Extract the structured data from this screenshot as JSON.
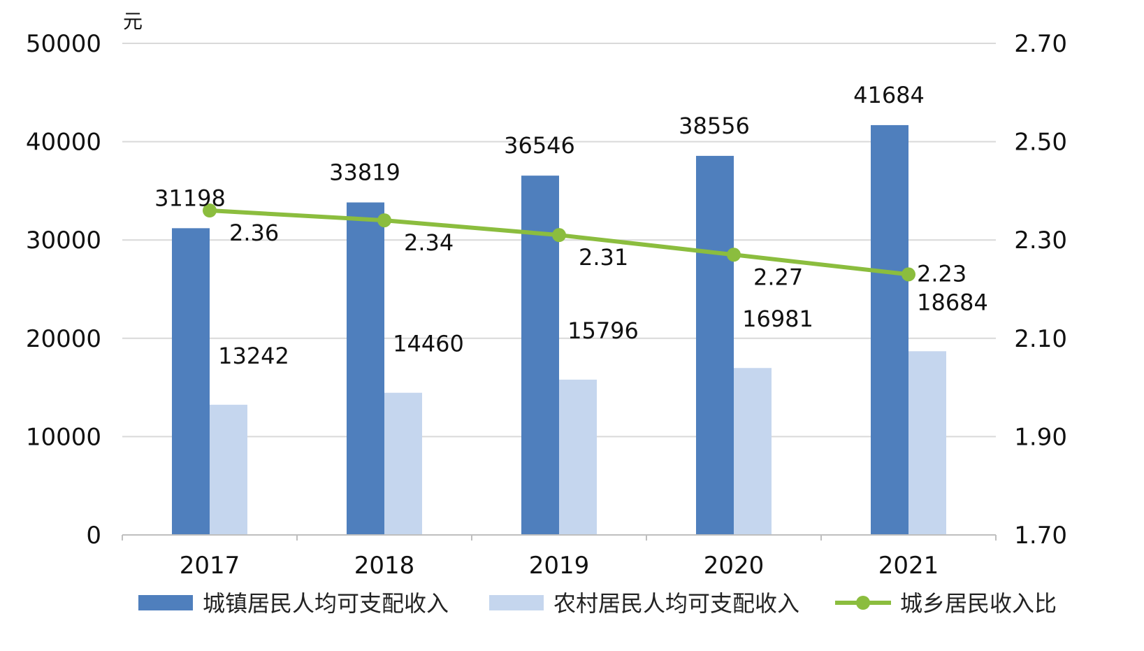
{
  "chart_data": {
    "type": "bar",
    "categories": [
      "2017",
      "2018",
      "2019",
      "2020",
      "2021"
    ],
    "y_unit": "元",
    "ylim": [
      0,
      50000
    ],
    "y_ticks": [
      "0",
      "10000",
      "20000",
      "30000",
      "40000",
      "50000"
    ],
    "y2lim": [
      1.7,
      2.7
    ],
    "y2_ticks": [
      "1.70",
      "1.90",
      "2.10",
      "2.30",
      "2.50",
      "2.70"
    ],
    "grid": true,
    "legend_position": "bottom",
    "series": [
      {
        "name": "城镇居民人均可支配收入",
        "type": "bar",
        "axis": "left",
        "color": "#4f7fbd",
        "values": [
          31198,
          33819,
          36546,
          38556,
          41684
        ],
        "labels": [
          "31198",
          "33819",
          "36546",
          "38556",
          "41684"
        ]
      },
      {
        "name": "农村居民人均可支配收入",
        "type": "bar",
        "axis": "left",
        "color": "#c5d6ee",
        "values": [
          13242,
          14460,
          15796,
          16981,
          18684
        ],
        "labels": [
          "13242",
          "14460",
          "15796",
          "16981",
          "18684"
        ]
      },
      {
        "name": "城乡居民收入比",
        "type": "line",
        "axis": "right",
        "color": "#8bbd3e",
        "values": [
          2.36,
          2.34,
          2.31,
          2.27,
          2.23
        ],
        "labels": [
          "2.36",
          "2.34",
          "2.31",
          "2.27",
          "2.23"
        ]
      }
    ]
  }
}
